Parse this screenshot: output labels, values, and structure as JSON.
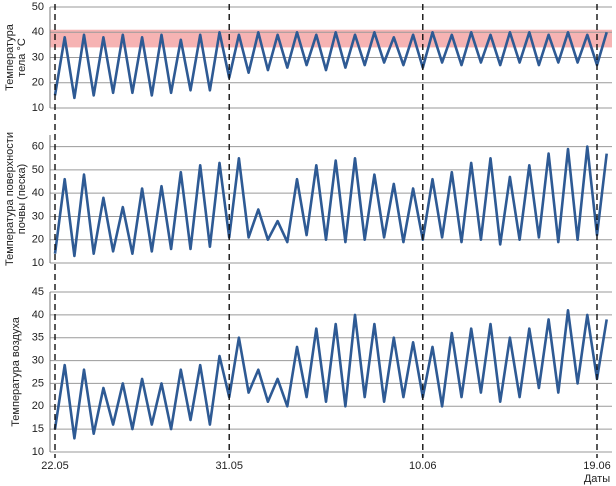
{
  "chart_data": [
    {
      "type": "line",
      "y_label": [
        "Температура",
        "тела °C"
      ],
      "ylim": [
        10,
        50
      ],
      "yticks": [
        10,
        20,
        30,
        40,
        50
      ],
      "grid": true,
      "band": [
        34,
        41
      ],
      "band_color": "#f4a6a6",
      "series": [
        {
          "color": "#2e5a94",
          "values": [
            15,
            38,
            14,
            39,
            15,
            38,
            16,
            39,
            16,
            38,
            15,
            39,
            16,
            37,
            17,
            39,
            17,
            40,
            22,
            39,
            24,
            40,
            25,
            39,
            26,
            40,
            27,
            39,
            25,
            40,
            26,
            39,
            27,
            40,
            28,
            38,
            27,
            39,
            26,
            40,
            28,
            39,
            27,
            40,
            28,
            39,
            27,
            40,
            28,
            40,
            27,
            39,
            28,
            40,
            28,
            39,
            27,
            40
          ]
        }
      ]
    },
    {
      "type": "line",
      "y_label": [
        "Температура поверхности",
        "почвы (песка)"
      ],
      "ylim": [
        10,
        65
      ],
      "yticks": [
        10,
        20,
        30,
        40,
        50,
        60
      ],
      "grid": true,
      "series": [
        {
          "color": "#2e5a94",
          "values": [
            14,
            46,
            13,
            48,
            14,
            38,
            15,
            34,
            14,
            42,
            15,
            43,
            16,
            49,
            16,
            52,
            17,
            53,
            21,
            55,
            21,
            33,
            20,
            28,
            19,
            46,
            22,
            52,
            20,
            54,
            19,
            55,
            20,
            48,
            21,
            44,
            19,
            42,
            20,
            46,
            21,
            49,
            19,
            53,
            20,
            55,
            18,
            47,
            20,
            52,
            21,
            57,
            19,
            59,
            20,
            60,
            22,
            57
          ]
        }
      ]
    },
    {
      "type": "line",
      "y_label": [
        "Температура воздуха"
      ],
      "ylim": [
        10,
        45
      ],
      "yticks": [
        10,
        15,
        20,
        25,
        30,
        35,
        40,
        45
      ],
      "grid": true,
      "x_label": "Даты",
      "categories": [
        "22.05",
        null,
        null,
        null,
        null,
        null,
        null,
        null,
        null,
        null,
        null,
        null,
        null,
        null,
        null,
        null,
        null,
        null,
        "31.05",
        null,
        null,
        null,
        null,
        null,
        null,
        null,
        null,
        null,
        null,
        null,
        null,
        null,
        null,
        null,
        null,
        null,
        null,
        null,
        "10.06",
        null,
        null,
        null,
        null,
        null,
        null,
        null,
        null,
        null,
        null,
        null,
        null,
        null,
        null,
        null,
        null,
        null,
        "19.06",
        null
      ],
      "series": [
        {
          "color": "#2e5a94",
          "values": [
            15,
            29,
            13,
            28,
            14,
            24,
            16,
            25,
            15,
            26,
            16,
            25,
            15,
            28,
            17,
            29,
            16,
            31,
            22,
            35,
            23,
            28,
            21,
            26,
            20,
            33,
            22,
            37,
            21,
            38,
            20,
            40,
            22,
            38,
            21,
            35,
            22,
            34,
            22,
            33,
            20,
            36,
            22,
            37,
            23,
            38,
            21,
            35,
            22,
            37,
            24,
            39,
            23,
            41,
            25,
            40,
            26,
            39
          ]
        }
      ]
    }
  ]
}
